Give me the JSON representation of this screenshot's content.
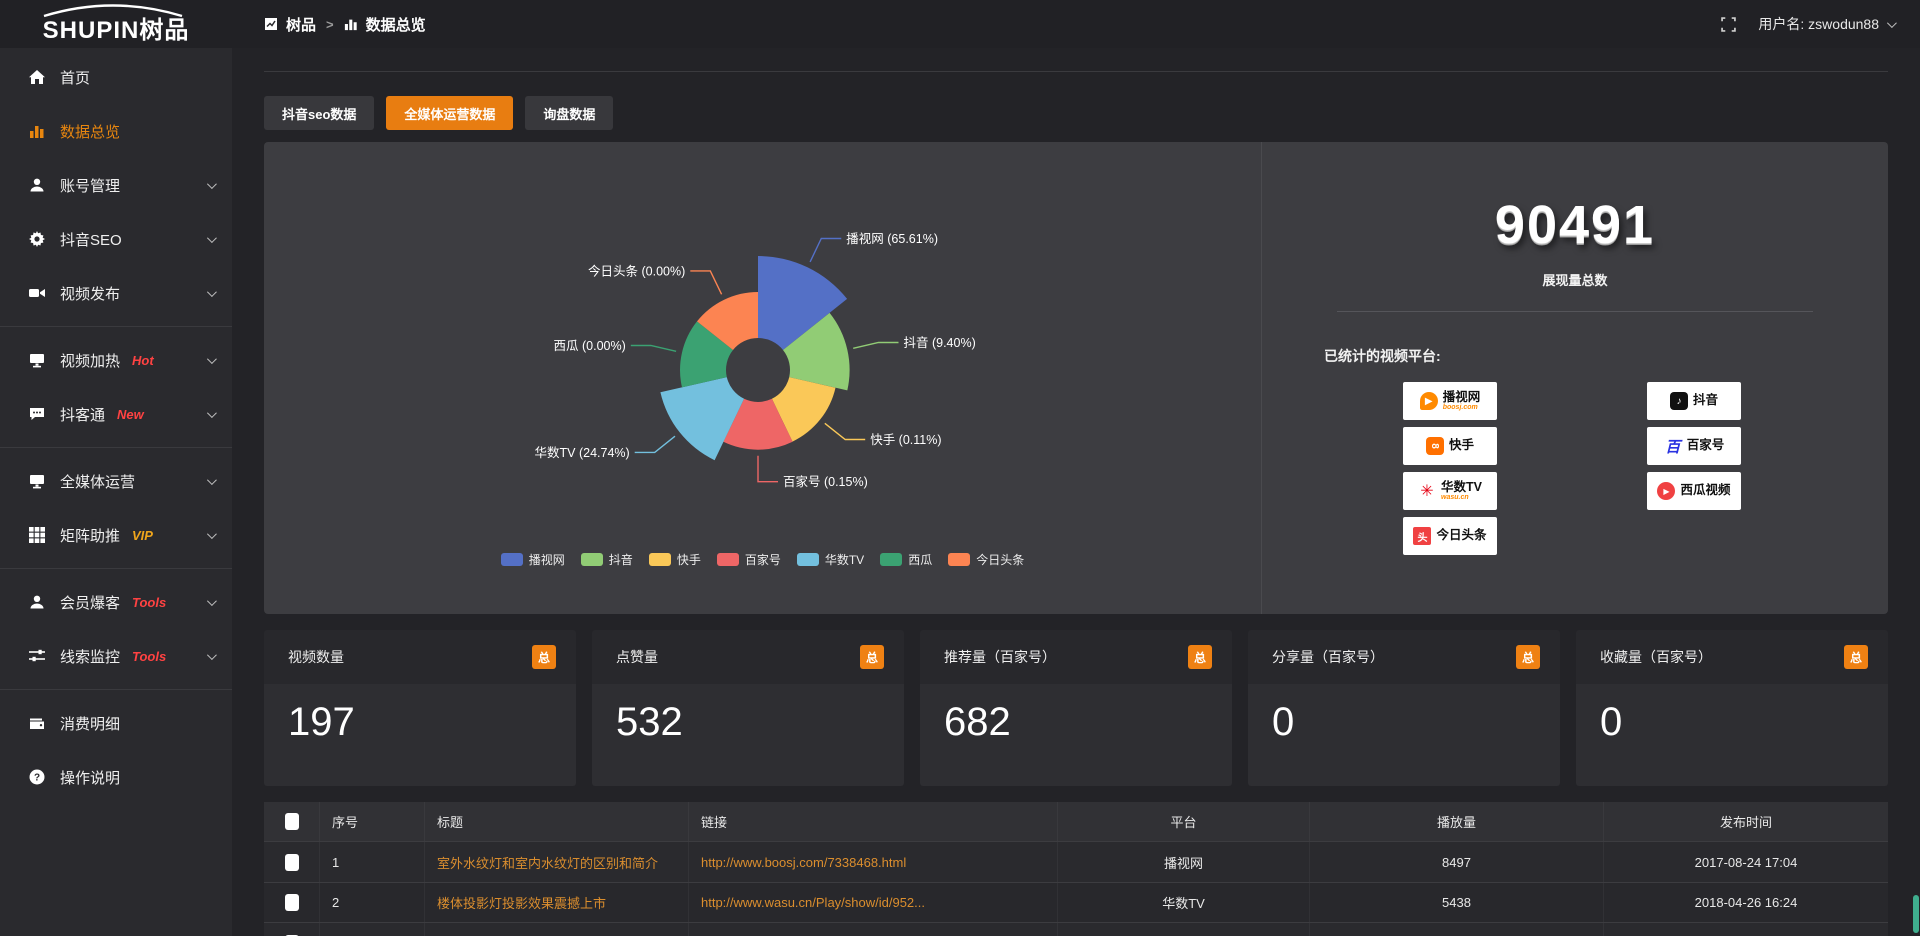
{
  "topbar": {
    "logo": "SHUPIN树品",
    "breadcrumb_home": "树品",
    "breadcrumb_sep": ">",
    "breadcrumb_current": "数据总览",
    "username": "用户名: zswodun88"
  },
  "tabs": [
    "抖音seo数据",
    "全媒体运营数据",
    "询盘数据"
  ],
  "sidebar": {
    "items": [
      {
        "label": "首页"
      },
      {
        "label": "数据总览"
      },
      {
        "label": "账号管理"
      },
      {
        "label": "抖音SEO"
      },
      {
        "label": "视频发布"
      },
      {
        "label": "视频加热",
        "badge": "Hot"
      },
      {
        "label": "抖客通",
        "badge": "New"
      },
      {
        "label": "全媒体运营"
      },
      {
        "label": "矩阵助推",
        "badge": "VIP"
      },
      {
        "label": "会员爆客",
        "badge": "Tools"
      },
      {
        "label": "线索监控",
        "badge": "Tools"
      },
      {
        "label": "消费明细"
      },
      {
        "label": "操作说明"
      }
    ]
  },
  "chart_data": {
    "type": "pie",
    "subtype": "nightingale-rose",
    "categories": [
      "播视网",
      "抖音",
      "快手",
      "百家号",
      "华数TV",
      "西瓜",
      "今日头条"
    ],
    "values": [
      65.61,
      9.4,
      0.11,
      0.15,
      24.74,
      0.0,
      0.0
    ],
    "labels_pct": [
      "65.61%",
      "9.40%",
      "0.11%",
      "0.15%",
      "24.74%",
      "0.00%",
      "0.00%"
    ],
    "colors": [
      "#5470c6",
      "#91cc75",
      "#fac858",
      "#ee6666",
      "#73c0de",
      "#3ba272",
      "#fc8452"
    ],
    "legend": [
      "播视网",
      "抖音",
      "快手",
      "百家号",
      "华数TV",
      "西瓜",
      "今日头条"
    ],
    "legend_position": "bottom",
    "title": ""
  },
  "summary": {
    "total_value": "90491",
    "total_label": "展现量总数",
    "platforms_label": "已统计的视频平台:",
    "platforms": [
      {
        "name": "播视网",
        "sub": "boosj.com"
      },
      {
        "name": "快手",
        "sub": ""
      },
      {
        "name": "华数TV",
        "sub": "wasu.cn"
      },
      {
        "name": "今日头条",
        "sub": ""
      },
      {
        "name": "抖音",
        "sub": ""
      },
      {
        "name": "百家号",
        "sub": ""
      },
      {
        "name": "西瓜视频",
        "sub": ""
      }
    ]
  },
  "stat_cards": [
    {
      "label": "视频数量",
      "badge": "总",
      "value": "197"
    },
    {
      "label": "点赞量",
      "badge": "总",
      "value": "532"
    },
    {
      "label": "推荐量（百家号）",
      "badge": "总",
      "value": "682"
    },
    {
      "label": "分享量（百家号）",
      "badge": "总",
      "value": "0"
    },
    {
      "label": "收藏量（百家号）",
      "badge": "总",
      "value": "0"
    }
  ],
  "table": {
    "headers": [
      "序号",
      "标题",
      "链接",
      "平台",
      "播放量",
      "发布时间"
    ],
    "rows": [
      {
        "no": "1",
        "title": "室外水纹灯和室内水纹灯的区别和简介",
        "link": "http://www.boosj.com/7338468.html",
        "platform": "播视网",
        "plays": "8497",
        "time": "2017-08-24 17:04"
      },
      {
        "no": "2",
        "title": "楼体投影灯投影效果震撼上市",
        "link": "http://www.wasu.cn/Play/show/id/952...",
        "platform": "华数TV",
        "plays": "5438",
        "time": "2018-04-26 16:24"
      }
    ]
  }
}
